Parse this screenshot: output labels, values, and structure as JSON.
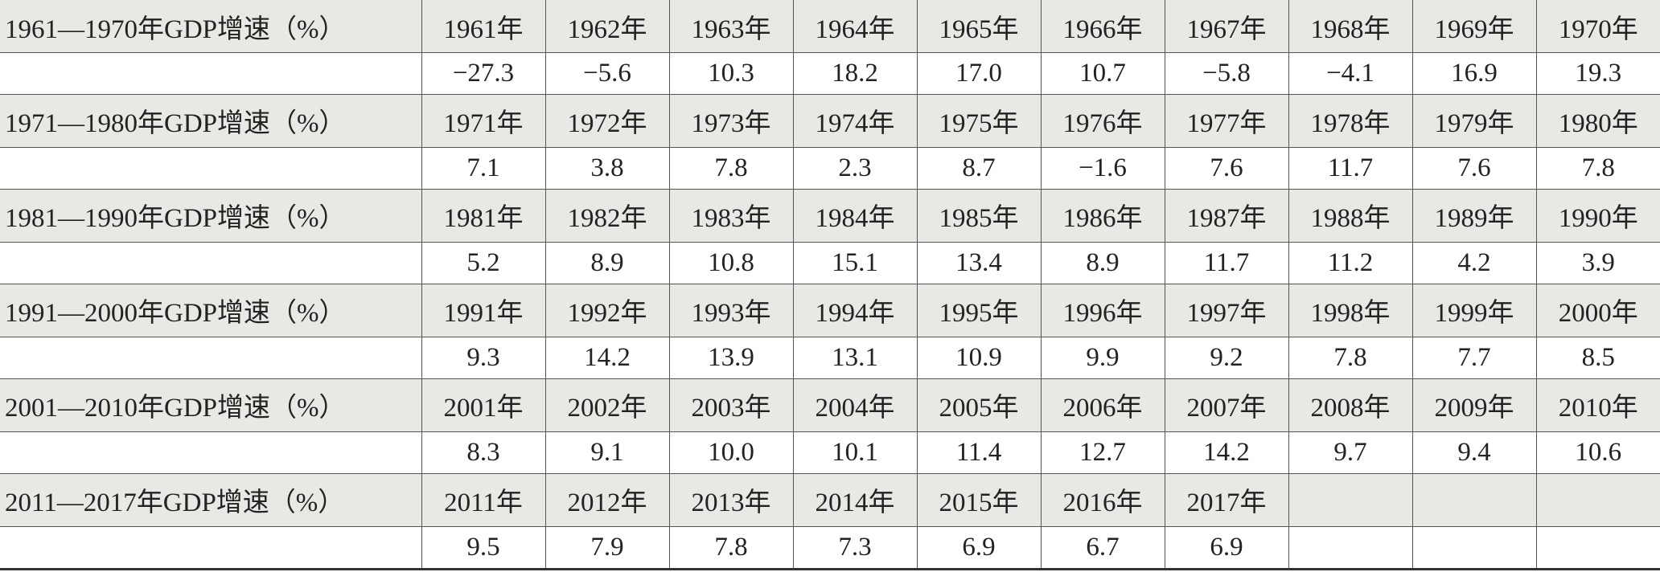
{
  "table": {
    "groups": [
      {
        "label": "1961—1970年GDP增速（%）",
        "years": [
          "1961年",
          "1962年",
          "1963年",
          "1964年",
          "1965年",
          "1966年",
          "1967年",
          "1968年",
          "1969年",
          "1970年"
        ],
        "values": [
          "−27.3",
          "−5.6",
          "10.3",
          "18.2",
          "17.0",
          "10.7",
          "−5.8",
          "−4.1",
          "16.9",
          "19.3"
        ]
      },
      {
        "label": "1971—1980年GDP增速（%）",
        "years": [
          "1971年",
          "1972年",
          "1973年",
          "1974年",
          "1975年",
          "1976年",
          "1977年",
          "1978年",
          "1979年",
          "1980年"
        ],
        "values": [
          "7.1",
          "3.8",
          "7.8",
          "2.3",
          "8.7",
          "−1.6",
          "7.6",
          "11.7",
          "7.6",
          "7.8"
        ]
      },
      {
        "label": "1981—1990年GDP增速（%）",
        "years": [
          "1981年",
          "1982年",
          "1983年",
          "1984年",
          "1985年",
          "1986年",
          "1987年",
          "1988年",
          "1989年",
          "1990年"
        ],
        "values": [
          "5.2",
          "8.9",
          "10.8",
          "15.1",
          "13.4",
          "8.9",
          "11.7",
          "11.2",
          "4.2",
          "3.9"
        ]
      },
      {
        "label": "1991—2000年GDP增速（%）",
        "years": [
          "1991年",
          "1992年",
          "1993年",
          "1994年",
          "1995年",
          "1996年",
          "1997年",
          "1998年",
          "1999年",
          "2000年"
        ],
        "values": [
          "9.3",
          "14.2",
          "13.9",
          "13.1",
          "10.9",
          "9.9",
          "9.2",
          "7.8",
          "7.7",
          "8.5"
        ]
      },
      {
        "label": "2001—2010年GDP增速（%）",
        "years": [
          "2001年",
          "2002年",
          "2003年",
          "2004年",
          "2005年",
          "2006年",
          "2007年",
          "2008年",
          "2009年",
          "2010年"
        ],
        "values": [
          "8.3",
          "9.1",
          "10.0",
          "10.1",
          "11.4",
          "12.7",
          "14.2",
          "9.7",
          "9.4",
          "10.6"
        ]
      },
      {
        "label": "2011—2017年GDP增速（%）",
        "years": [
          "2011年",
          "2012年",
          "2013年",
          "2014年",
          "2015年",
          "2016年",
          "2017年"
        ],
        "values": [
          "9.5",
          "7.9",
          "7.8",
          "7.3",
          "6.9",
          "6.7",
          "6.9"
        ]
      }
    ]
  }
}
